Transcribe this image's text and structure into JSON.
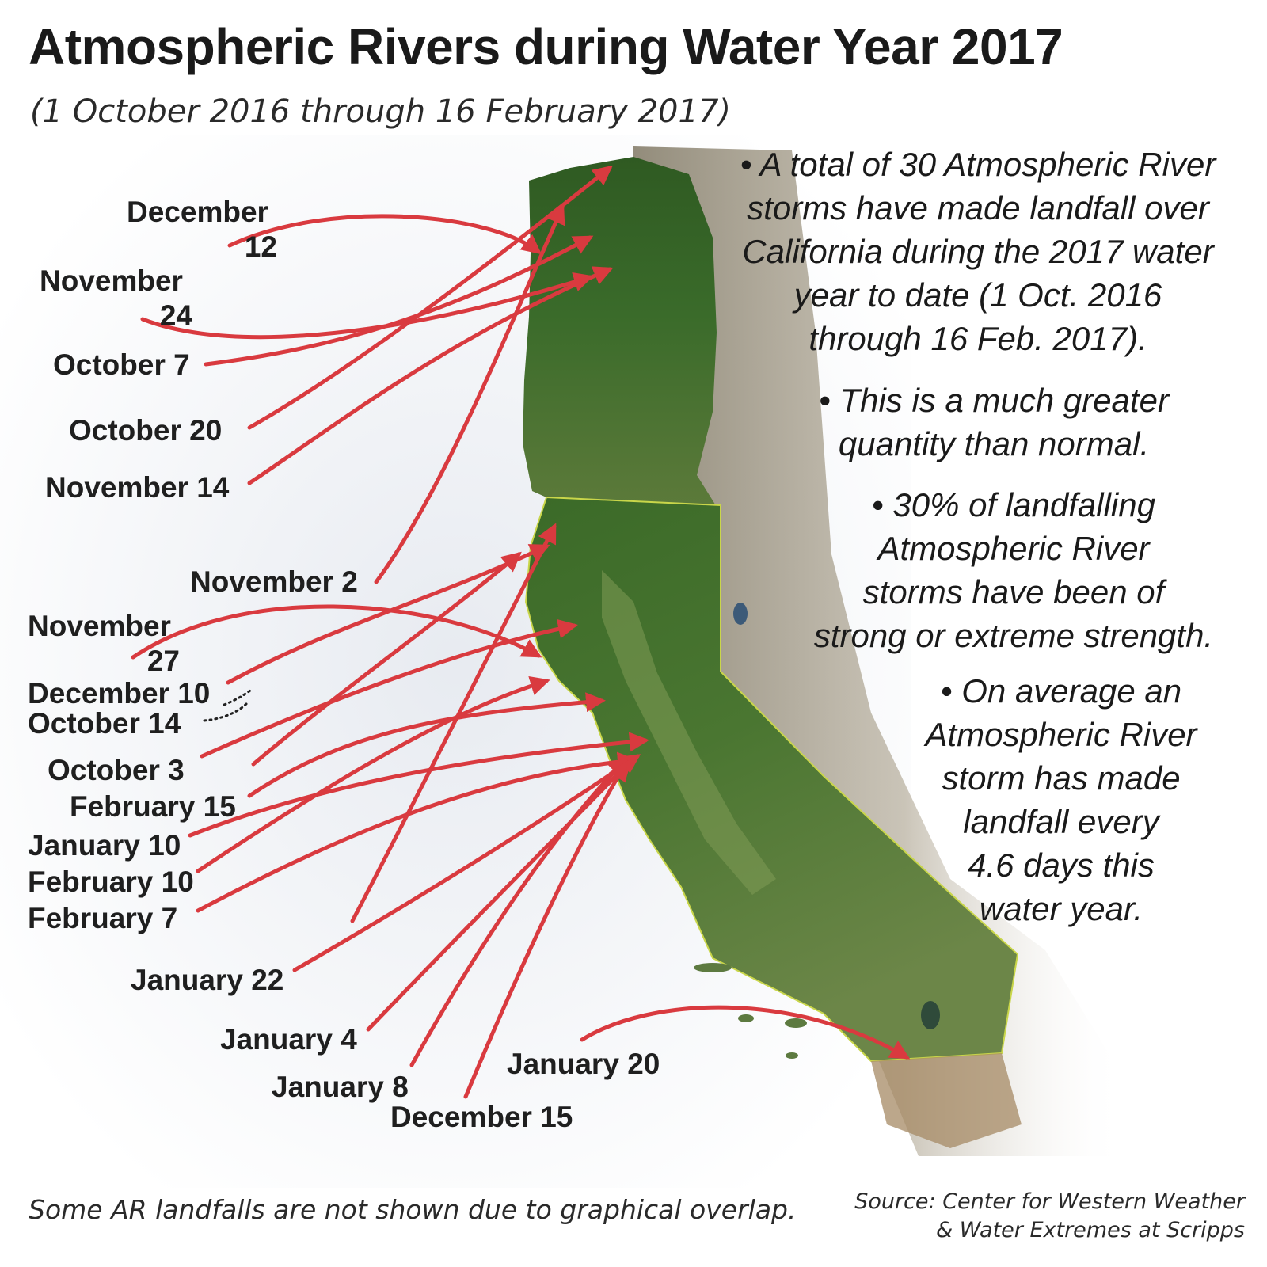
{
  "title": "Atmospheric Rivers during Water Year 2017",
  "subtitle": "(1 October 2016 through 16 February 2017)",
  "facts": [
    "• A total of 30 Atmospheric River\nstorms have made landfall over\nCalifornia during the 2017 water\nyear to date (1 Oct. 2016\nthrough 16 Feb. 2017).",
    "• This is a much greater\nquantity than normal.",
    "• 30% of landfalling\nAtmospheric River\nstorms have been of\nstrong or extreme strength.",
    "• On average an\nAtmospheric River\nstorm has made\nlandfall every\n4.6 days this\nwater year."
  ],
  "landfall_labels": [
    [
      "December",
      "12"
    ],
    [
      "November",
      "24"
    ],
    [
      "October 7"
    ],
    [
      "October 20"
    ],
    [
      "November 14"
    ],
    [
      "November 2"
    ],
    [
      "November",
      "27"
    ],
    [
      "December 10"
    ],
    [
      "October 14"
    ],
    [
      "October 3"
    ],
    [
      "February 15"
    ],
    [
      "January 10"
    ],
    [
      "February 10"
    ],
    [
      "February 7"
    ],
    [
      "January 22"
    ],
    [
      "January 4"
    ],
    [
      "January 8"
    ],
    [
      "December 15"
    ],
    [
      "January 20"
    ]
  ],
  "footnote": "Some AR landfalls are not shown due to graphical overlap.",
  "source": "Source: Center for Western Weather\n& Water Extremes at Scripps",
  "colors": {
    "arrow": "#d93a3f",
    "forest": "#3d6a2a",
    "ocean": "#eef0f4",
    "land_dry": "#a99f8d",
    "text": "#1a1a1a"
  }
}
